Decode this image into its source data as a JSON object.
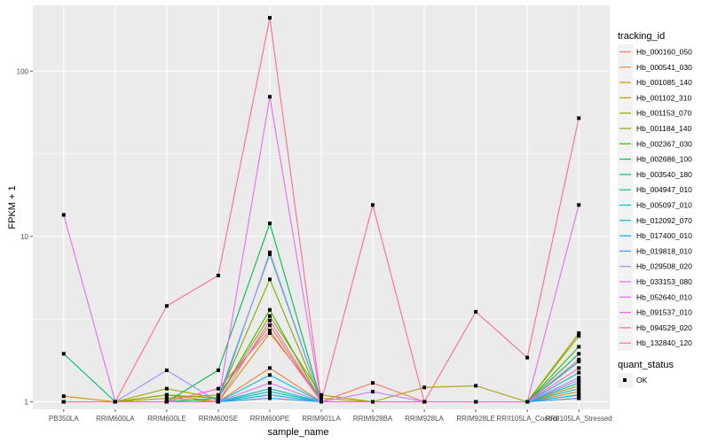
{
  "chart_data": {
    "type": "line",
    "xlabel": "sample_name",
    "ylabel": "FPKM + 1",
    "yscale": "log10",
    "ylim": [
      0.9,
      250
    ],
    "yticks": [
      1,
      10,
      100
    ],
    "ytick_labels": [
      "1",
      "10",
      "100"
    ],
    "grid": true,
    "legend_position": "right",
    "categories": [
      "PB350LA",
      "RRIM600LA",
      "RRIM600LE",
      "RRIM600SE",
      "RRIM600PE",
      "RRIM901LA",
      "RRIM928BA",
      "RRIM928LA",
      "RRIM928LE",
      "RRII105LA_Control",
      "RRII105LA_Stressed"
    ],
    "legend_title": "tracking_id",
    "series": [
      {
        "name": "Hb_000160_050",
        "color": "#F8766D",
        "values": [
          1,
          1,
          1,
          1,
          1.05,
          1,
          1.3,
          1,
          1,
          1,
          1.05
        ]
      },
      {
        "name": "Hb_000541_030",
        "color": "#EA8331",
        "values": [
          1,
          1,
          1.1,
          1,
          1.6,
          1,
          1,
          1,
          1,
          1,
          1.1
        ]
      },
      {
        "name": "Hb_001085_140",
        "color": "#D89000",
        "values": [
          1.08,
          1,
          1.05,
          1,
          2.6,
          1.05,
          1,
          1,
          1,
          1,
          1.15
        ]
      },
      {
        "name": "Hb_001102_310",
        "color": "#C09B00",
        "values": [
          1,
          1,
          1.05,
          1.1,
          2.9,
          1,
          1,
          1,
          1,
          1,
          1.25
        ]
      },
      {
        "name": "Hb_001153_070",
        "color": "#A3A500",
        "values": [
          1,
          1,
          1.2,
          1.05,
          3.3,
          1.1,
          1,
          1.22,
          1.25,
          1,
          2.6
        ]
      },
      {
        "name": "Hb_001184_140",
        "color": "#7CAE00",
        "values": [
          1,
          1,
          1.1,
          1.05,
          5.5,
          1,
          1,
          1,
          1,
          1,
          2.5
        ]
      },
      {
        "name": "Hb_002367_030",
        "color": "#39B600",
        "values": [
          1,
          1,
          1,
          1.05,
          3.6,
          1,
          1,
          1,
          1,
          1,
          2.15
        ]
      },
      {
        "name": "Hb_002686_100",
        "color": "#00BB4E",
        "values": [
          1,
          1,
          1,
          1.55,
          12,
          1,
          1,
          1,
          1,
          1,
          1.95
        ]
      },
      {
        "name": "Hb_003540_180",
        "color": "#00BF7D",
        "values": [
          1.95,
          1,
          1,
          1.05,
          7.8,
          1,
          1,
          1,
          1,
          1,
          1.75
        ]
      },
      {
        "name": "Hb_004947_010",
        "color": "#00C1A3",
        "values": [
          1,
          1,
          1,
          1,
          1.15,
          1,
          1,
          1,
          1,
          1,
          1.3
        ]
      },
      {
        "name": "Hb_005097_010",
        "color": "#00BFC4",
        "values": [
          1,
          1,
          1,
          1,
          1.2,
          1,
          1,
          1,
          1,
          1,
          1.5
        ]
      },
      {
        "name": "Hb_012092_070",
        "color": "#00BAE0",
        "values": [
          1,
          1,
          1,
          1,
          1.45,
          1,
          1,
          1,
          1,
          1,
          1.2
        ]
      },
      {
        "name": "Hb_017400_010",
        "color": "#00B0F6",
        "values": [
          1,
          1,
          1,
          1,
          1.1,
          1,
          1,
          1,
          1,
          1,
          1.1
        ]
      },
      {
        "name": "Hb_019818_010",
        "color": "#35A2FF",
        "values": [
          1,
          1,
          1,
          1,
          1.05,
          1,
          1,
          1,
          1,
          1,
          1.05
        ]
      },
      {
        "name": "Hb_029508_020",
        "color": "#9590FF",
        "values": [
          1,
          1,
          1.55,
          1,
          8,
          1,
          1,
          1,
          1,
          1,
          1.35
        ]
      },
      {
        "name": "Hb_033153_080",
        "color": "#C77CFF",
        "values": [
          1,
          1,
          1,
          1,
          1.3,
          1,
          1.15,
          1,
          1,
          1,
          1.4
        ]
      },
      {
        "name": "Hb_052640_010",
        "color": "#E76BF3",
        "values": [
          13.5,
          1,
          1,
          1,
          70,
          1,
          1,
          1,
          1,
          1,
          15.5
        ]
      },
      {
        "name": "Hb_091537_010",
        "color": "#FA62DB",
        "values": [
          1,
          1,
          1,
          1,
          3.1,
          1,
          1,
          1,
          1,
          1,
          1.8
        ]
      },
      {
        "name": "Hb_094529_020",
        "color": "#FF62BC",
        "values": [
          1,
          1,
          1,
          1.2,
          2.7,
          1,
          1,
          1,
          1,
          1,
          1.6
        ]
      },
      {
        "name": "Hb_132840_120",
        "color": "#FF6C91",
        "values": [
          1,
          1,
          3.8,
          5.8,
          210,
          1,
          15.5,
          1,
          3.5,
          1.85,
          52
        ]
      }
    ],
    "status_legend": {
      "title": "quant_status",
      "items": [
        {
          "label": "OK",
          "shape": "square",
          "color": "#000000"
        }
      ]
    }
  }
}
